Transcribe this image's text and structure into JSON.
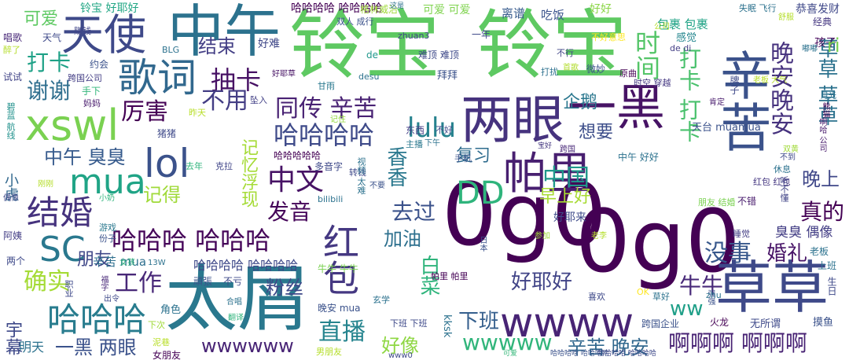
{
  "words": [
    {
      "text": "铃宝",
      "color": "#5ec962"
    },
    {
      "text": "铃宝",
      "color": "#5ec962"
    },
    {
      "text": "0g0",
      "color": "#440154"
    },
    {
      "text": "0g0",
      "color": "#440154"
    },
    {
      "text": "太屑",
      "color": "#2a788e"
    },
    {
      "text": "中午",
      "color": "#2c728e"
    },
    {
      "text": "天使",
      "color": "#3e4989"
    },
    {
      "text": "歌词",
      "color": "#31688e"
    },
    {
      "text": "xswl",
      "color": "#7ad151"
    },
    {
      "text": "可爱",
      "color": "#35b779"
    },
    {
      "text": "两眼",
      "color": "#46337e"
    },
    {
      "text": "一黑",
      "color": "#471365"
    },
    {
      "text": "草草",
      "color": "#3e4989"
    },
    {
      "text": "辛苦",
      "color": "#3b528b"
    },
    {
      "text": "wwww",
      "color": "#482475"
    },
    {
      "text": "哈哈哈",
      "color": "#287c8e"
    },
    {
      "text": "哈哈哈 哈哈哈",
      "color": "#450559"
    },
    {
      "text": "哈哈哈哈",
      "color": "#3e4a89"
    },
    {
      "text": "SC",
      "color": "#2a788e"
    },
    {
      "text": "lol",
      "color": "#3b528b"
    },
    {
      "text": "mua",
      "color": "#20a486"
    },
    {
      "text": "结婚",
      "color": "#46337e"
    },
    {
      "text": "帕里",
      "color": "#481f70"
    },
    {
      "text": "中文",
      "color": "#471365"
    },
    {
      "text": "红包",
      "color": "#453882"
    },
    {
      "text": "DD",
      "color": "#2fb47c"
    },
    {
      "text": "lulu",
      "color": "#26828e"
    },
    {
      "text": "同传 辛苦",
      "color": "#482173"
    },
    {
      "text": "谢谢",
      "color": "#2e6e8e"
    },
    {
      "text": "打卡",
      "color": "#1fa187"
    },
    {
      "text": "抽卡",
      "color": "#471164"
    },
    {
      "text": "结束",
      "color": "#433e85"
    },
    {
      "text": "不用",
      "color": "#433d84"
    },
    {
      "text": "厉害",
      "color": "#440154"
    },
    {
      "text": "中午 臭臭",
      "color": "#375b8d"
    },
    {
      "text": "确实",
      "color": "#a5db36"
    },
    {
      "text": "工作",
      "color": "#482878"
    },
    {
      "text": "朋友",
      "color": "#3f4788"
    },
    {
      "text": "记得",
      "color": "#a0da39"
    },
    {
      "text": "中国",
      "color": "#1f988b"
    },
    {
      "text": "发音",
      "color": "#450559"
    },
    {
      "text": "去过",
      "color": "#3b528b"
    },
    {
      "text": "加油",
      "color": "#2d708e"
    },
    {
      "text": "粉丝",
      "color": "#3e4989"
    },
    {
      "text": "好耶好",
      "color": "#414487"
    },
    {
      "text": "直播",
      "color": "#25848e"
    },
    {
      "text": "好像",
      "color": "#8fd744"
    },
    {
      "text": "wwwww",
      "color": "#31b57b"
    },
    {
      "text": "wwwwww",
      "color": "#482475"
    },
    {
      "text": "一黑 两眼",
      "color": "#3b528b"
    },
    {
      "text": "啊啊啊 啊啊啊",
      "color": "#482374"
    },
    {
      "text": "辛苦 晚安",
      "color": "#31688e"
    },
    {
      "text": "下班",
      "color": "#355f8d"
    },
    {
      "text": "没事",
      "color": "#38588c"
    },
    {
      "text": "婚礼",
      "color": "#481467"
    },
    {
      "text": "真的",
      "color": "#440154"
    },
    {
      "text": "牛牛",
      "color": "#482979"
    },
    {
      "text": "晚上",
      "color": "#3f4788"
    },
    {
      "text": "ww",
      "color": "#1f9f88"
    },
    {
      "text": "早上好",
      "color": "#a8db34"
    },
    {
      "text": "复习",
      "color": "#2f6c8e"
    },
    {
      "text": "想要",
      "color": "#3d4e8a"
    },
    {
      "text": "企鹅",
      "color": "#2a778e"
    },
    {
      "text": "时间",
      "color": "#54c568"
    },
    {
      "text": "晚安晚安",
      "color": "#46327e"
    },
    {
      "text": "草草 草草",
      "color": "#2c728e"
    },
    {
      "text": "哈哈哈哈 哈哈哈哈",
      "color": "#3e4989"
    },
    {
      "text": "哈哈哈哈 哈哈哈哈",
      "color": "#3b528b"
    },
    {
      "text": "辛苦 mua",
      "color": "#2e6f8e"
    },
    {
      "text": "臭臭 偶像",
      "color": "#433e85"
    },
    {
      "text": "好耶来",
      "color": "#3e4a89"
    },
    {
      "text": "铃宝 好耶好",
      "color": "#22a785"
    },
    {
      "text": "可爱 可爱",
      "color": "#7fd34e"
    },
    {
      "text": "离谱",
      "color": "#375b8d"
    },
    {
      "text": "吃饭",
      "color": "#3a548c"
    },
    {
      "text": "好好",
      "color": "#8bd646"
    },
    {
      "text": "包裹 包裹",
      "color": "#20a386"
    },
    {
      "text": "哈哈哈哈 哈哈哈哈",
      "color": "#440154"
    },
    {
      "text": "小虎",
      "color": "#31688e"
    },
    {
      "text": "记忆浮现",
      "color": "#a5db36"
    },
    {
      "text": "打卡 打卡",
      "color": "#4ac16d"
    },
    {
      "text": "香香",
      "color": "#2a788e"
    },
    {
      "text": "白菜",
      "color": "#2fb47c"
    },
    {
      "text": "可爱",
      "color": "#5ec962"
    },
    {
      "text": "天气",
      "color": "#3e4989"
    },
    {
      "text": "唱歌",
      "color": "#482878"
    },
    {
      "text": "醉了",
      "color": "#b5de2b"
    },
    {
      "text": "好难",
      "color": "#3f4788"
    },
    {
      "text": "赚钱",
      "color": "#404588"
    },
    {
      "text": "约会",
      "color": "#3b528b"
    },
    {
      "text": "BLG",
      "color": "#2c728e"
    },
    {
      "text": "跨国公司",
      "color": "#433e85"
    },
    {
      "text": "试试",
      "color": "#414487"
    },
    {
      "text": "手下",
      "color": "#32b67a"
    },
    {
      "text": "妈妈",
      "color": "#481b6d"
    },
    {
      "text": "昨天",
      "color": "#b8de29"
    },
    {
      "text": "格林威治",
      "color": "#a0da39"
    },
    {
      "text": "一年",
      "color": "#3e4a89"
    },
    {
      "text": "zhuan3",
      "color": "#404688"
    },
    {
      "text": "感觉",
      "color": "#24868e"
    },
    {
      "text": "de di",
      "color": "#433e85"
    },
    {
      "text": "孩子",
      "color": "#46085c"
    },
    {
      "text": "经典",
      "color": "#453781"
    },
    {
      "text": "恭喜发财",
      "color": "#3f4889"
    },
    {
      "text": "舒服",
      "color": "#b5de2b"
    },
    {
      "text": "失眠 飞行",
      "color": "#2c728e"
    },
    {
      "text": "双人 成行",
      "color": "#3b528b"
    },
    {
      "text": "这是",
      "color": "#2d708e"
    },
    {
      "text": "不好意思",
      "color": "#fde725"
    },
    {
      "text": "不行",
      "color": "#414487"
    },
    {
      "text": "难顶 难顶",
      "color": "#3e4989"
    },
    {
      "text": "de",
      "color": "#1f988b"
    },
    {
      "text": "desu",
      "color": "#2c728e"
    },
    {
      "text": "拜拜",
      "color": "#3b528b"
    },
    {
      "text": "打扰",
      "color": "#2d708e"
    },
    {
      "text": "首歌",
      "color": "#b2dd2d"
    },
    {
      "text": "原曲",
      "color": "#440154"
    },
    {
      "text": "老板 大气",
      "color": "#b8de29"
    },
    {
      "text": "时空 穿越",
      "color": "#453882"
    },
    {
      "text": "肯定",
      "color": "#481b6d"
    },
    {
      "text": "微妙",
      "color": "#3b528b"
    },
    {
      "text": "甘雨",
      "color": "#2a788e"
    },
    {
      "text": "好耶草",
      "color": "#471365"
    },
    {
      "text": "坠入",
      "color": "#424086"
    },
    {
      "text": "记住",
      "color": "#95d840"
    },
    {
      "text": "碧蓝 航线",
      "color": "#21918c"
    },
    {
      "text": "猪猪",
      "color": "#3e4989"
    },
    {
      "text": "东西",
      "color": "#433e85"
    },
    {
      "text": "主播",
      "color": "#2a788e"
    },
    {
      "text": "不好",
      "color": "#3e4989"
    },
    {
      "text": "下午",
      "color": "#2c728e"
    },
    {
      "text": "宝好",
      "color": "#453781"
    },
    {
      "text": "跨国",
      "color": "#482878"
    },
    {
      "text": "天台 muamua",
      "color": "#3b528b"
    },
    {
      "text": "中午 好好",
      "color": "#2c728e"
    },
    {
      "text": "去年",
      "color": "#2fb47c"
    },
    {
      "text": "克拉",
      "color": "#404588"
    },
    {
      "text": "多音字",
      "color": "#3e4989"
    },
    {
      "text": "转钱",
      "color": "#3e4989"
    },
    {
      "text": "视频 太难",
      "color": "#2c728e"
    },
    {
      "text": "刚刚",
      "color": "#b5de2b"
    },
    {
      "text": "小奶",
      "color": "#2fb47c"
    },
    {
      "text": "偶像",
      "color": "#3e4989"
    },
    {
      "text": "游戏",
      "color": "#2a788e"
    },
    {
      "text": "份子",
      "color": "#3b528b"
    },
    {
      "text": "阿姨",
      "color": "#433e85"
    },
    {
      "text": "bilibili",
      "color": "#2c728e"
    },
    {
      "text": "不要",
      "color": "#3b528b"
    },
    {
      "text": "朋友 结婚",
      "color": "#7ad151"
    },
    {
      "text": "红包 红包",
      "color": "#453781"
    },
    {
      "text": "不错",
      "color": "#481b6d"
    },
    {
      "text": "休息",
      "color": "#2c728e"
    },
    {
      "text": "双黄",
      "color": "#a0da39"
    },
    {
      "text": "不到",
      "color": "#3e4989"
    },
    {
      "text": "听不懂",
      "color": "#414487"
    },
    {
      "text": "老李",
      "color": "#b5de2b"
    },
    {
      "text": "参加",
      "color": "#a0da39"
    },
    {
      "text": "日本",
      "color": "#3b528b"
    },
    {
      "text": "睡觉",
      "color": "#433e85"
    },
    {
      "text": "上班",
      "color": "#2c728e"
    },
    {
      "text": "老板",
      "color": "#2c728e"
    },
    {
      "text": "两个",
      "color": "#3e4989"
    },
    {
      "text": "女孩",
      "color": "#2fb47c"
    },
    {
      "text": "13W",
      "color": "#2c728e"
    },
    {
      "text": "福字",
      "color": "#482878"
    },
    {
      "text": "頑張",
      "color": "#3b528b"
    },
    {
      "text": "不亏",
      "color": "#3e4989"
    },
    {
      "text": "牛牛 牛牛",
      "color": "#7ad151"
    },
    {
      "text": "帕里 帕里",
      "color": "#440154"
    },
    {
      "text": "晚安 mua",
      "color": "#3b528b"
    },
    {
      "text": "玄学",
      "color": "#2c728e"
    },
    {
      "text": "喜欢",
      "color": "#3e4989"
    },
    {
      "text": "OK",
      "color": "#fde725"
    },
    {
      "text": "草好",
      "color": "#2c728e"
    },
    {
      "text": "强强",
      "color": "#3b528b"
    },
    {
      "text": "出令",
      "color": "#3e4989"
    },
    {
      "text": "角色",
      "color": "#2c728e"
    },
    {
      "text": "合唱",
      "color": "#2c728e"
    },
    {
      "text": "翻译",
      "color": "#2fb47c"
    },
    {
      "text": "下次",
      "color": "#a0da39"
    },
    {
      "text": "泥巷",
      "color": "#b8de29"
    },
    {
      "text": "女朋友",
      "color": "#440154"
    },
    {
      "text": "宇幕",
      "color": "#3e4989"
    },
    {
      "text": "明天",
      "color": "#2c728e"
    },
    {
      "text": "下班 下班",
      "color": "#3e4989"
    },
    {
      "text": "kksk",
      "color": "#2c728e"
    },
    {
      "text": "男朋友",
      "color": "#b5de2b"
    },
    {
      "text": "www0",
      "color": "#3e4989"
    },
    {
      "text": "跨国企业",
      "color": "#3b528b"
    },
    {
      "text": "无所谓",
      "color": "#3e4989"
    },
    {
      "text": "火龙",
      "color": "#440154"
    },
    {
      "text": "摸鱼",
      "color": "#3b528b"
    },
    {
      "text": "生日",
      "color": "#3e4989"
    },
    {
      "text": "月光",
      "color": "#2c728e"
    },
    {
      "text": "熊猫",
      "color": "#440154"
    },
    {
      "text": "啊哈 公司",
      "color": "#481b6d"
    },
    {
      "text": "牌子",
      "color": "#3e4989"
    },
    {
      "text": "zhu",
      "color": "#2c728e"
    },
    {
      "text": "手机",
      "color": "#3b528b"
    },
    {
      "text": "ri",
      "color": "#7ad151"
    },
    {
      "text": "职业",
      "color": "#3e4989"
    },
    {
      "text": "公司",
      "color": "#b5de2b"
    },
    {
      "text": "嘟嘟",
      "color": "#2c728e"
    },
    {
      "text": "哈哈哈哈 哈哈哈哈",
      "color": "#3e4989"
    },
    {
      "text": "哈哈哈哈哈",
      "color": "#440154"
    }
  ]
}
